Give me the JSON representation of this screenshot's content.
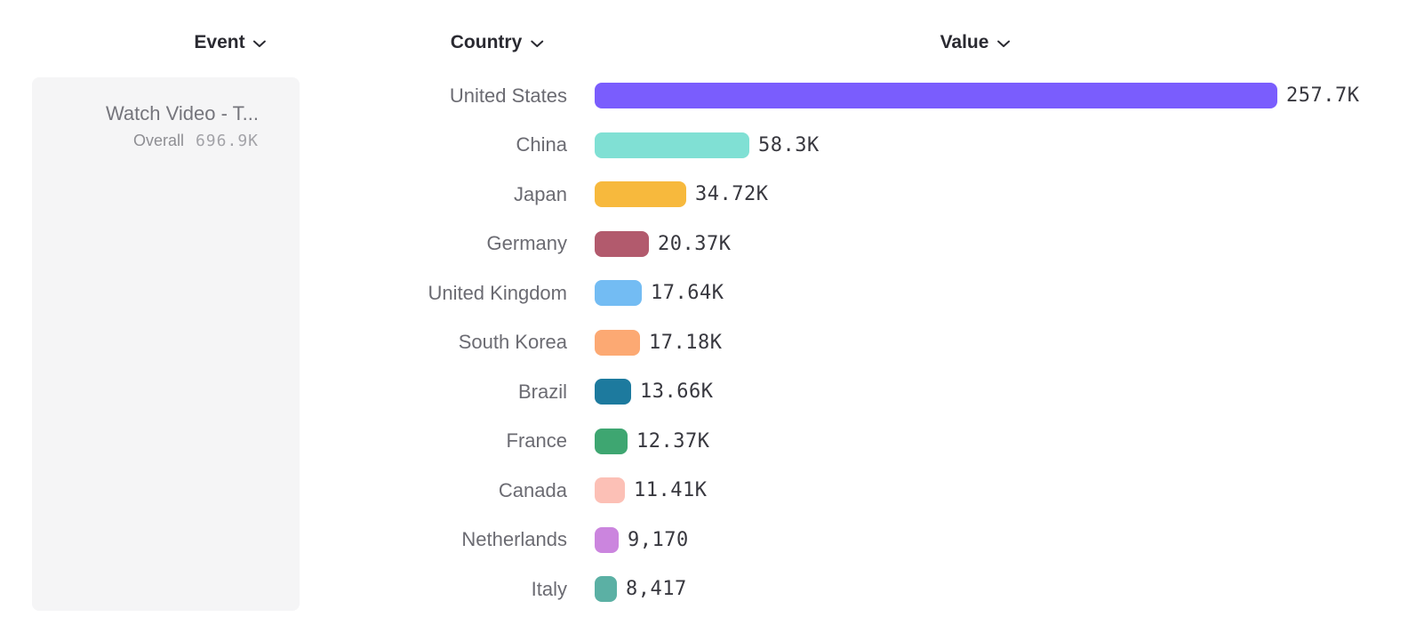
{
  "columns": {
    "event": {
      "label": "Event"
    },
    "country": {
      "label": "Country"
    },
    "value": {
      "label": "Value"
    }
  },
  "event_card": {
    "title": "Watch Video - T...",
    "metric_label": "Overall",
    "metric_value": "696.9K"
  },
  "chart_data": {
    "type": "bar",
    "orientation": "horizontal",
    "title": "",
    "xlabel": "Value",
    "ylabel": "Country",
    "xlim": [
      0,
      257700
    ],
    "grid": false,
    "categories": [
      "United States",
      "China",
      "Japan",
      "Germany",
      "United Kingdom",
      "South Korea",
      "Brazil",
      "France",
      "Canada",
      "Netherlands",
      "Italy"
    ],
    "values": [
      257700,
      58300,
      34720,
      20370,
      17640,
      17180,
      13660,
      12370,
      11410,
      9170,
      8417
    ],
    "value_labels": [
      "257.7K",
      "58.3K",
      "34.72K",
      "20.37K",
      "17.64K",
      "17.18K",
      "13.66K",
      "12.37K",
      "11.41K",
      "9,170",
      "8,417"
    ],
    "colors": [
      "#7A5DFD",
      "#80E0D4",
      "#F7B93D",
      "#B25A6D",
      "#73BCF3",
      "#FCA973",
      "#1D7A9E",
      "#3EA671",
      "#FCC0B6",
      "#CB85DE",
      "#5BB0A4"
    ]
  },
  "ui_colors": {
    "header_text": "#2a2a31",
    "country_label_text": "#6b6b72",
    "value_label_text": "#38383f",
    "card_background": "#f5f5f6",
    "card_title_text": "#75757c"
  },
  "icons": {
    "dropdown_chevron": "chevron-down"
  }
}
